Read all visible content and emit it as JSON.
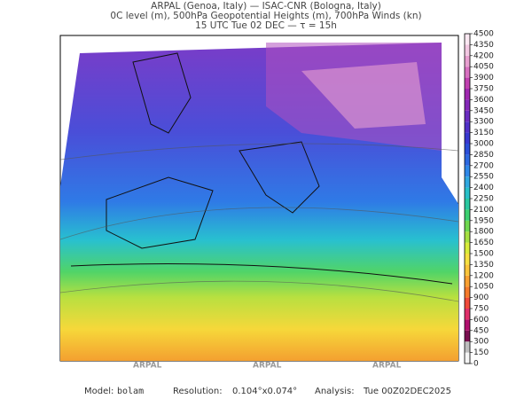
{
  "header": {
    "line1": "ARPAL (Genoa, Italy)  —  ISAC-CNR (Bologna, Italy)",
    "line2": "0C level (m), 500hPa Geopotential Heights (m), 700hPa Winds (kn)",
    "line3": "15 UTC Tue 02 DEC  —  τ = 15h"
  },
  "colorbar": {
    "levels": [
      0,
      150,
      300,
      450,
      600,
      750,
      900,
      1050,
      1200,
      1350,
      1500,
      1650,
      1800,
      1950,
      2100,
      2250,
      2400,
      2550,
      2700,
      2850,
      3000,
      3150,
      3300,
      3450,
      3600,
      3750,
      3900,
      4050,
      4200,
      4350,
      4500
    ],
    "colors": [
      "#f4f4f4",
      "#bdbdbd",
      "#7a1050",
      "#b0106e",
      "#e0306a",
      "#f04a3a",
      "#f57a2a",
      "#f9a030",
      "#fbc43a",
      "#f6e040",
      "#d8ec3a",
      "#a6e040",
      "#6fd850",
      "#3cd070",
      "#2ac8a0",
      "#28c0c8",
      "#30a8e0",
      "#2f88e8",
      "#2c68e0",
      "#2a4ed8",
      "#3838d0",
      "#5030c8",
      "#6a2cc0",
      "#8428b8",
      "#a028b0",
      "#c040b0",
      "#d870c0",
      "#e8a0d0",
      "#f2c8e2",
      "#fbe8f2"
    ]
  },
  "watermark": "ARPAL",
  "footer": {
    "model_label": "Model:",
    "model": "bolam",
    "resolution_label": "Resolution:",
    "resolution": "0.104°x0.074°",
    "analysis_label": "Analysis:",
    "analysis": "Tue 00Z02DEC2025"
  }
}
